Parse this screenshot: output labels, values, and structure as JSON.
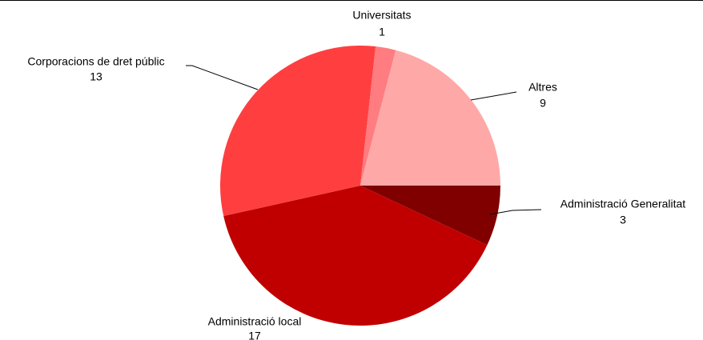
{
  "chart_data": {
    "type": "pie",
    "categories": [
      "Administració Generalitat",
      "Administració local",
      "Corporacions de dret públic",
      "Universitats",
      "Altres"
    ],
    "values": [
      3,
      17,
      13,
      1,
      9
    ],
    "colors": [
      "#800000",
      "#c00000",
      "#ff3f3f",
      "#ff7c80",
      "#ffa8a8"
    ]
  }
}
